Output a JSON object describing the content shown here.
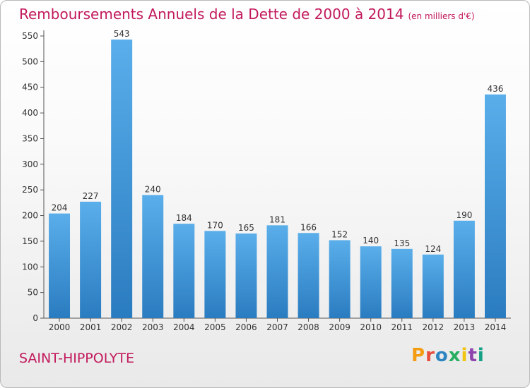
{
  "header": {
    "title": "Remboursements Annuels de la Dette de 2000 à 2014",
    "unit": "(en milliers d'€)"
  },
  "footer": {
    "place": "SAINT-HIPPOLYTE",
    "logo_text": "Proxiti",
    "logo_colors": [
      "#f39c12",
      "#e74c3c",
      "#2e86c1",
      "#27ae60",
      "#f1c40f",
      "#8e44ad",
      "#16a085"
    ]
  },
  "chart_data": {
    "type": "bar",
    "categories": [
      "2000",
      "2001",
      "2002",
      "2003",
      "2004",
      "2005",
      "2006",
      "2007",
      "2008",
      "2009",
      "2010",
      "2011",
      "2012",
      "2013",
      "2014"
    ],
    "values": [
      204,
      227,
      543,
      240,
      184,
      170,
      165,
      181,
      166,
      152,
      140,
      135,
      124,
      190,
      436
    ],
    "ylim": [
      0,
      550
    ],
    "yticks": [
      0,
      50,
      100,
      150,
      200,
      250,
      300,
      350,
      400,
      450,
      500,
      550
    ],
    "grid": false,
    "data_labels": true,
    "bar_color": "#3f93d6"
  }
}
